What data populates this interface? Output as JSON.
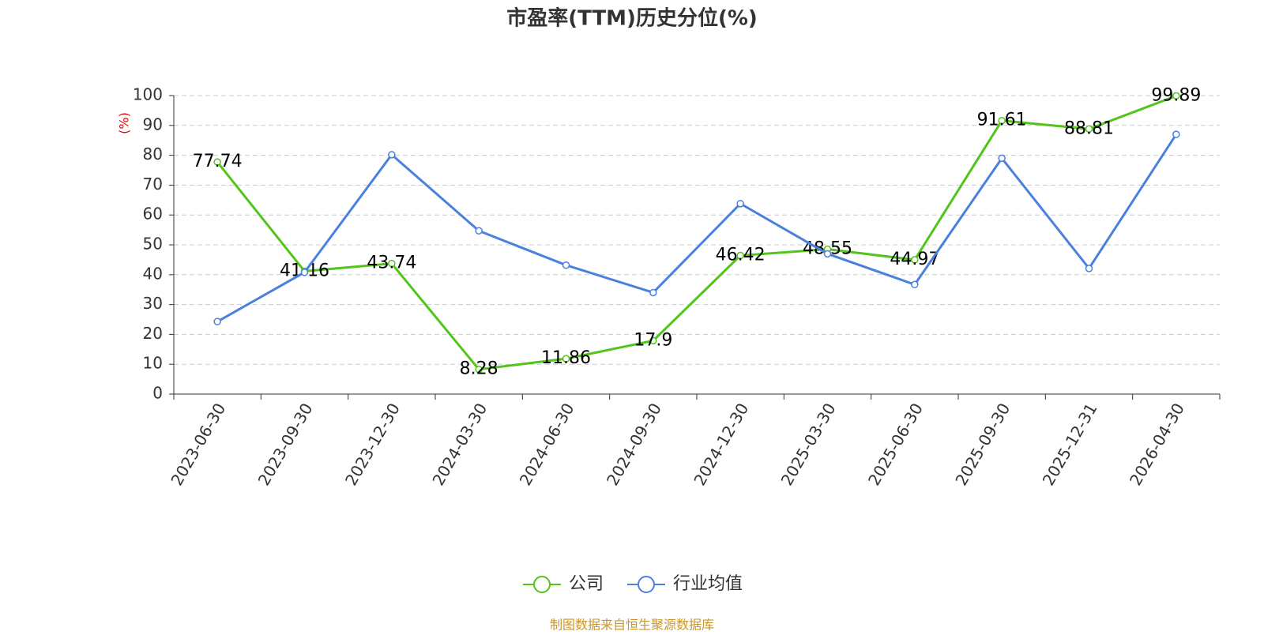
{
  "chart_data": {
    "type": "line",
    "title": "市盈率(TTM)历史分位(%)",
    "y_label": "(%)",
    "source": "制图数据来自恒生聚源数据库",
    "categories": [
      "2023-06-30",
      "2023-09-30",
      "2023-12-30",
      "2024-03-30",
      "2024-06-30",
      "2024-09-30",
      "2024-12-30",
      "2025-03-30",
      "2025-06-30",
      "2025-09-30",
      "2025-12-31",
      "2026-04-30"
    ],
    "series": [
      {
        "name": "公司",
        "color": "#52c41a",
        "values": [
          77.74,
          41.16,
          43.74,
          8.28,
          11.86,
          17.9,
          46.42,
          48.55,
          44.97,
          91.61,
          88.81,
          99.89
        ],
        "show_labels": true
      },
      {
        "name": "行业均值",
        "color": "#4a80de",
        "values": [
          24.3,
          40.8,
          80.2,
          54.7,
          43.2,
          34.0,
          63.8,
          47.0,
          36.7,
          79.0,
          42.1,
          87.0
        ],
        "show_labels": false
      }
    ],
    "ylim": [
      0,
      100
    ],
    "yticks": [
      0,
      10,
      20,
      30,
      40,
      50,
      60,
      70,
      80,
      90,
      100
    ],
    "grid": true,
    "legend": "bottom"
  }
}
